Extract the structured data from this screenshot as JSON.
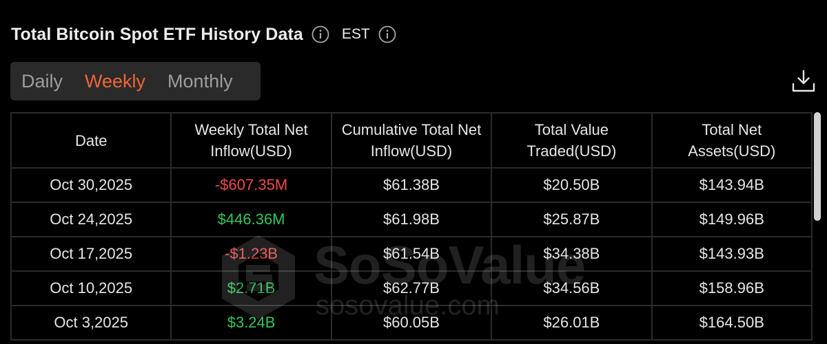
{
  "header": {
    "title": "Total Bitcoin Spot ETF History Data",
    "timezone": "EST",
    "icons": [
      "info-icon",
      "info-icon"
    ]
  },
  "tabs": [
    {
      "label": "Daily",
      "active": false
    },
    {
      "label": "Weekly",
      "active": true
    },
    {
      "label": "Monthly",
      "active": false
    }
  ],
  "toolbar": {
    "download_icon": "download-icon"
  },
  "table": {
    "columns": [
      "Date",
      "Weekly Total Net Inflow(USD)",
      "Cumulative Total Net Inflow(USD)",
      "Total Value Traded(USD)",
      "Total Net Assets(USD)"
    ],
    "rows": [
      {
        "date": "Oct 30,2025",
        "inflow": "-$607.35M",
        "inflow_sign": "neg",
        "cumulative": "$61.38B",
        "traded": "$20.50B",
        "assets": "$143.94B"
      },
      {
        "date": "Oct 24,2025",
        "inflow": "$446.36M",
        "inflow_sign": "pos",
        "cumulative": "$61.98B",
        "traded": "$25.87B",
        "assets": "$149.96B"
      },
      {
        "date": "Oct 17,2025",
        "inflow": "-$1.23B",
        "inflow_sign": "neg",
        "cumulative": "$61.54B",
        "traded": "$34.38B",
        "assets": "$143.93B"
      },
      {
        "date": "Oct 10,2025",
        "inflow": "$2.71B",
        "inflow_sign": "pos",
        "cumulative": "$62.77B",
        "traded": "$34.56B",
        "assets": "$158.96B"
      },
      {
        "date": "Oct 3,2025",
        "inflow": "$3.24B",
        "inflow_sign": "pos",
        "cumulative": "$60.05B",
        "traded": "$26.01B",
        "assets": "$164.50B"
      }
    ]
  },
  "watermark": {
    "brand": "SoSoValue",
    "url": "sosovalue.com"
  },
  "colors": {
    "accent": "#f0653a",
    "negative": "#f04b4b",
    "positive": "#34c759",
    "background": "#000000"
  }
}
